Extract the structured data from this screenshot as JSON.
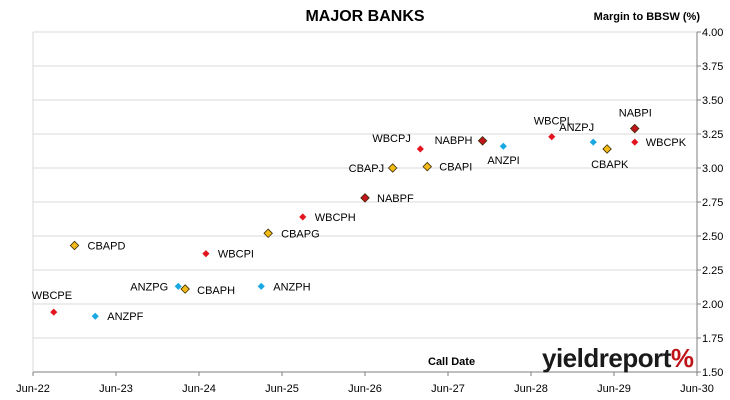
{
  "chart_data": {
    "type": "scatter",
    "title": "MAJOR BANKS",
    "ylabel": "Margin to BBSW (%)",
    "xlabel": "Call Date",
    "y_axis_position": "right",
    "ylim": [
      1.5,
      4.0
    ],
    "y_ticks": [
      "1.50",
      "1.75",
      "2.00",
      "2.25",
      "2.50",
      "2.75",
      "3.00",
      "3.25",
      "3.50",
      "3.75",
      "4.00"
    ],
    "x_ticks": [
      "Jun-22",
      "Jun-23",
      "Jun-24",
      "Jun-25",
      "Jun-26",
      "Jun-27",
      "Jun-28",
      "Jun-29",
      "Jun-30"
    ],
    "xlim": [
      "2022-06",
      "2030-06"
    ],
    "grid": "horizontal",
    "points": [
      {
        "label": "WBCPE",
        "x": "2022-09",
        "y": 1.94,
        "bank": "WBC"
      },
      {
        "label": "CBAPD",
        "x": "2022-12",
        "y": 2.43,
        "bank": "CBA"
      },
      {
        "label": "ANZPF",
        "x": "2023-03",
        "y": 1.91,
        "bank": "ANZ"
      },
      {
        "label": "ANZPG",
        "x": "2024-03",
        "y": 2.13,
        "bank": "ANZ"
      },
      {
        "label": "CBAPH",
        "x": "2024-04",
        "y": 2.11,
        "bank": "CBA"
      },
      {
        "label": "WBCPI",
        "x": "2024-07",
        "y": 2.37,
        "bank": "WBC"
      },
      {
        "label": "ANZPH",
        "x": "2025-03",
        "y": 2.13,
        "bank": "ANZ"
      },
      {
        "label": "CBAPG",
        "x": "2025-04",
        "y": 2.52,
        "bank": "CBA"
      },
      {
        "label": "WBCPH",
        "x": "2025-09",
        "y": 2.64,
        "bank": "WBC"
      },
      {
        "label": "NABPF",
        "x": "2026-06",
        "y": 2.78,
        "bank": "NAB"
      },
      {
        "label": "CBAPJ",
        "x": "2026-10",
        "y": 3.0,
        "bank": "CBA"
      },
      {
        "label": "WBCPJ",
        "x": "2027-02",
        "y": 3.14,
        "bank": "WBC"
      },
      {
        "label": "CBAPI",
        "x": "2027-03",
        "y": 3.01,
        "bank": "CBA"
      },
      {
        "label": "NABPH",
        "x": "2027-11",
        "y": 3.2,
        "bank": "NAB"
      },
      {
        "label": "ANZPI",
        "x": "2028-02",
        "y": 3.16,
        "bank": "ANZ"
      },
      {
        "label": "WBCPL",
        "x": "2028-09",
        "y": 3.23,
        "bank": "WBC"
      },
      {
        "label": "ANZPJ",
        "x": "2029-03",
        "y": 3.19,
        "bank": "ANZ"
      },
      {
        "label": "CBAPK",
        "x": "2029-05",
        "y": 3.14,
        "bank": "CBA"
      },
      {
        "label": "NABPI",
        "x": "2029-09",
        "y": 3.29,
        "bank": "NAB"
      },
      {
        "label": "WBCPK",
        "x": "2029-09",
        "y": 3.19,
        "bank": "WBC"
      }
    ],
    "bank_colors": {
      "WBC": "#e3141e",
      "CBA": "#f2bb16",
      "ANZ": "#19a8e2",
      "NAB": "#c2141c"
    },
    "marker": "diamond"
  },
  "brand": {
    "word": "yieldreport",
    "symbol": "%"
  }
}
